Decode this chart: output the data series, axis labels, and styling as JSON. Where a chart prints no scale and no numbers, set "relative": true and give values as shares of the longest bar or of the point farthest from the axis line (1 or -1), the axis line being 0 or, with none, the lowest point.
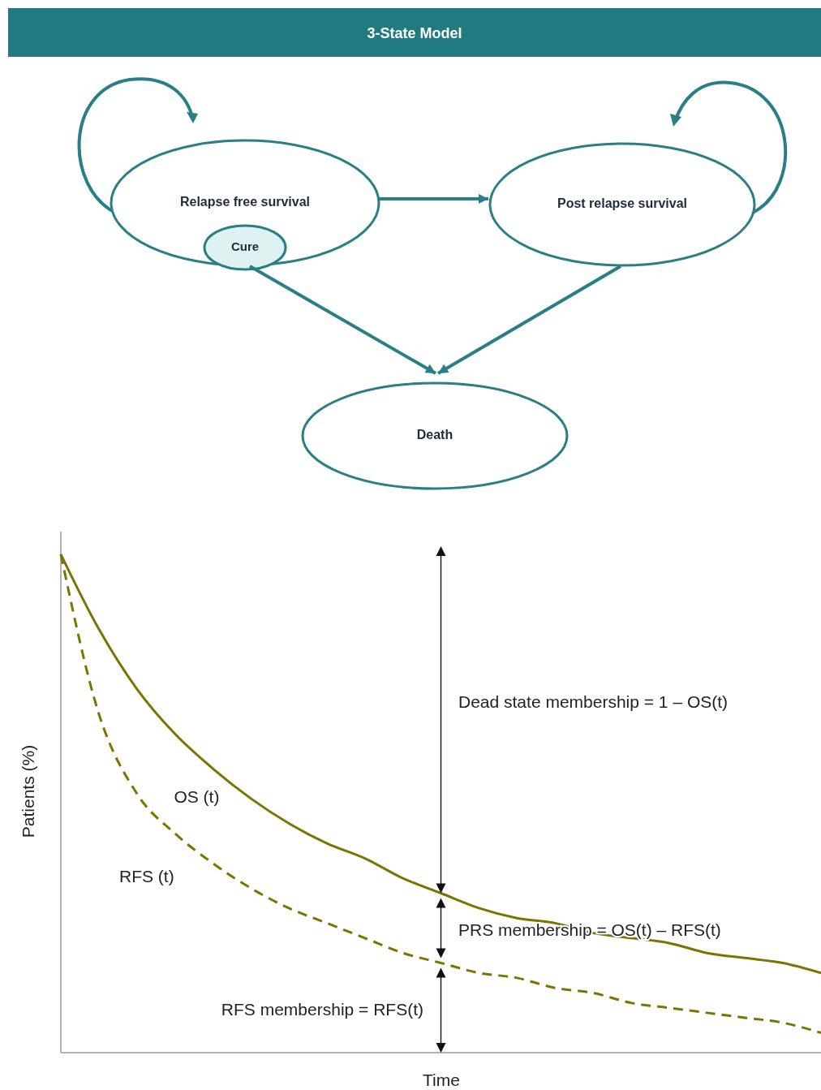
{
  "chart_data": [
    {
      "type": "other",
      "title": "3-State Model",
      "annotations": [
        "Relapse free survival",
        "Cure",
        "Post relapse survival",
        "Death"
      ]
    },
    {
      "type": "line",
      "relative": true,
      "xlabel": "Time",
      "ylabel": "Patients (%)",
      "categories": [
        null,
        null,
        null,
        null,
        null,
        null,
        null,
        null,
        null,
        null,
        null,
        null,
        null,
        null,
        null,
        null,
        null,
        null,
        null,
        null,
        null
      ],
      "series": [
        {
          "name": "OS (t)",
          "color": "#7d7300",
          "line_style": "solid",
          "values": [
            1.0,
            0.85,
            0.73,
            0.64,
            0.57,
            0.51,
            0.46,
            0.42,
            0.39,
            0.35,
            0.32,
            0.29,
            0.27,
            0.26,
            0.24,
            0.23,
            0.22,
            0.2,
            0.19,
            0.18,
            0.16
          ]
        },
        {
          "name": "RFS (t)",
          "color": "#7d7300",
          "line_style": "dashed",
          "values": [
            1.0,
            0.68,
            0.52,
            0.44,
            0.38,
            0.33,
            0.29,
            0.26,
            0.23,
            0.2,
            0.18,
            0.16,
            0.15,
            0.13,
            0.12,
            0.1,
            0.09,
            0.08,
            0.07,
            0.06,
            0.04
          ]
        }
      ],
      "annotations": [
        "Dead state membership = 1 – OS(t)",
        "PRS membership = OS(t) – RFS(t)",
        "RFS membership = RFS(t)"
      ]
    }
  ]
}
